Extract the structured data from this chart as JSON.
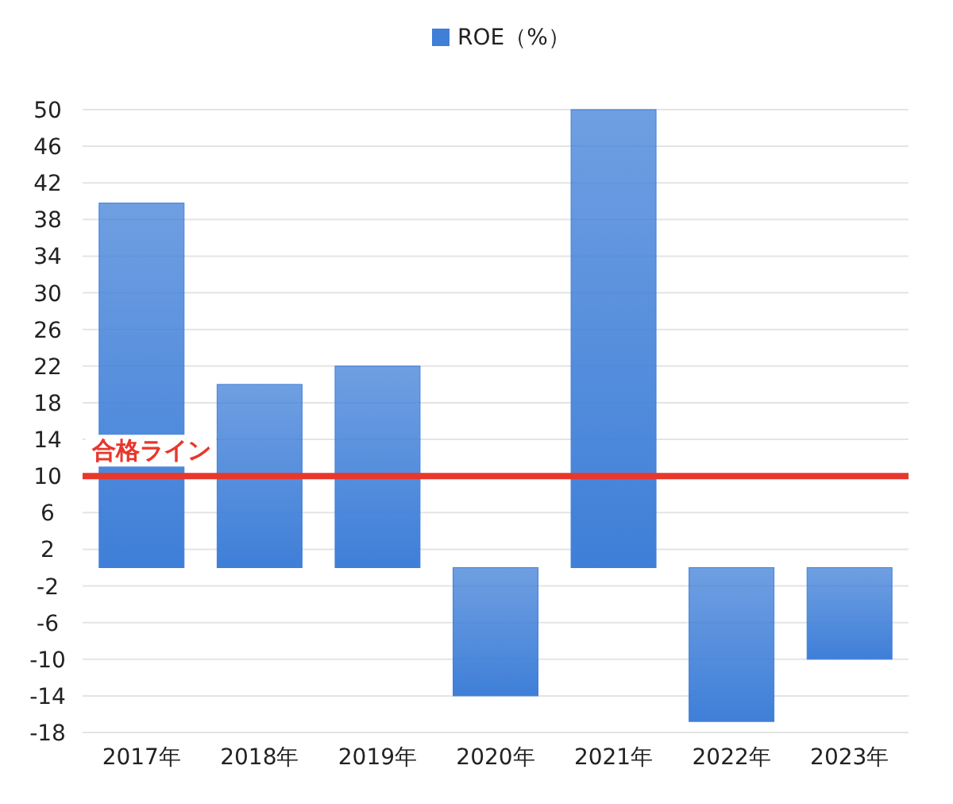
{
  "chart_data": {
    "type": "bar",
    "categories": [
      "2017年",
      "2018年",
      "2019年",
      "2020年",
      "2021年",
      "2022年",
      "2023年"
    ],
    "series": [
      {
        "name": "ROE（%）",
        "color": "#3f7fd8",
        "values": [
          39.8,
          20,
          22,
          -14,
          50,
          -16.8,
          -10
        ]
      }
    ],
    "ylim": [
      -18,
      50
    ],
    "yticks": [
      -18,
      -14,
      -10,
      -6,
      -2,
      2,
      6,
      10,
      14,
      18,
      22,
      26,
      30,
      34,
      38,
      42,
      46,
      50
    ],
    "ref_lines": [
      {
        "axis": "y",
        "value": 10,
        "label": "合格ライン",
        "color": "#e8372c"
      }
    ],
    "grid": "y",
    "legend": "top"
  }
}
